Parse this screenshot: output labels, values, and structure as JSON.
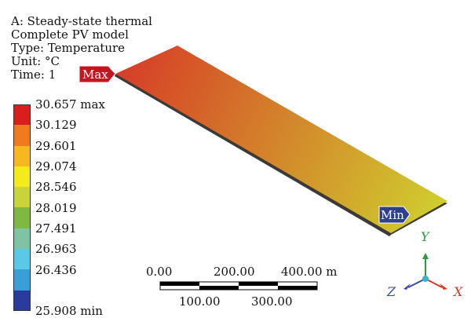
{
  "header": {
    "analysis": "A: Steady-state thermal",
    "model": "Complete PV model",
    "type": "Type: Temperature",
    "unit": "Unit: °C",
    "time": "Time: 1"
  },
  "legend": {
    "labels": [
      "30.657 max",
      "30.129",
      "29.601",
      "29.074",
      "28.546",
      "28.019",
      "27.491",
      "26.963",
      "26.436",
      "25.908 min"
    ],
    "colors": [
      "#d81e1e",
      "#f07a1e",
      "#f5b821",
      "#f4ea1c",
      "#c8d43a",
      "#7fb842",
      "#7fc3a3",
      "#5bc8e6",
      "#3a9fd8",
      "#2a3b9b"
    ]
  },
  "markers": {
    "max": "Max",
    "min": "Min"
  },
  "scale_bar": {
    "top_labels": [
      "0.00",
      "200.00",
      "400.00 m"
    ],
    "bottom_labels": [
      "100.00",
      "300.00"
    ]
  },
  "axes": {
    "y": "Y",
    "z": "Z",
    "x": "X"
  },
  "colors": {
    "plate_hot": "#d73c27",
    "plate_cool": "#cfcf2e",
    "marker": "#c8141e",
    "min_marker": "#2f3f8f",
    "axis_y": "#2a9a3a",
    "axis_x": "#d23a2a",
    "axis_z": "#3a4aa8",
    "axis_center": "#38b3c8"
  }
}
